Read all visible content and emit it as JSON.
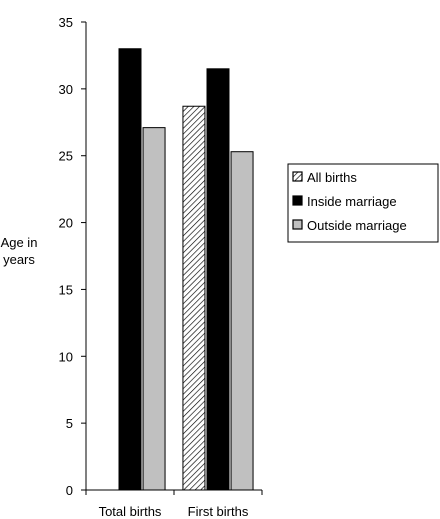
{
  "chart_data": {
    "type": "bar",
    "ylabel": [
      "Age in",
      "years"
    ],
    "ylim": [
      0,
      35
    ],
    "yticks": [
      "0",
      "5",
      "10",
      "15",
      "20",
      "25",
      "30",
      "35"
    ],
    "categories": [
      "Total births",
      "First births"
    ],
    "series": [
      {
        "name": "All births",
        "values": [
          null,
          28.7
        ],
        "fill": "hatch"
      },
      {
        "name": "Inside marriage",
        "values": [
          33.0,
          31.5
        ],
        "fill": "#000000"
      },
      {
        "name": "Outside marriage",
        "values": [
          27.1,
          25.3
        ],
        "fill": "#c0c0c0"
      }
    ],
    "legend_position": "right",
    "grid": false
  }
}
